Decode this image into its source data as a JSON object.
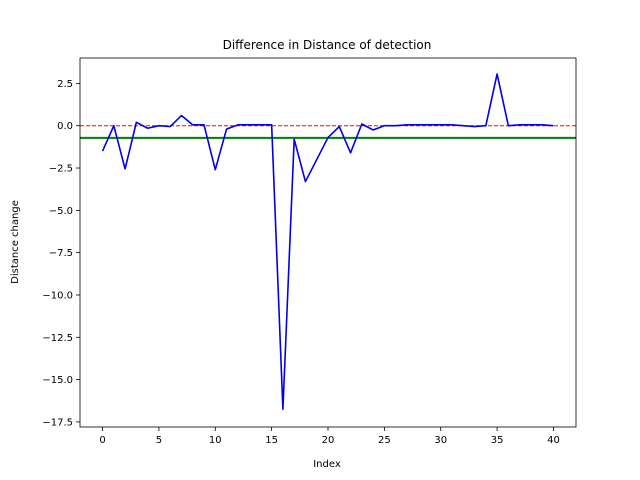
{
  "chart_data": {
    "type": "line",
    "title": "Difference in Distance of detection",
    "xlabel": "Index",
    "ylabel": "Distance change",
    "xlim": [
      -2,
      42
    ],
    "ylim": [
      -17.8,
      4.0
    ],
    "xticks": [
      0,
      5,
      10,
      15,
      20,
      25,
      30,
      35,
      40
    ],
    "yticks": [
      2.5,
      0.0,
      -2.5,
      -5.0,
      -7.5,
      -10.0,
      -12.5,
      -15.0,
      -17.5
    ],
    "xtick_labels": [
      "0",
      "5",
      "10",
      "15",
      "20",
      "25",
      "30",
      "35",
      "40"
    ],
    "ytick_labels": [
      "2.5",
      "0.0",
      "−2.5",
      "−5.0",
      "−7.5",
      "−10.0",
      "−12.5",
      "−15.0",
      "−17.5"
    ],
    "grid": false,
    "series": [
      {
        "color": "#0000ee",
        "x": [
          0,
          1,
          2,
          3,
          4,
          5,
          6,
          7,
          8,
          9,
          10,
          11,
          12,
          13,
          14,
          15,
          16,
          17,
          18,
          19,
          20,
          21,
          22,
          23,
          24,
          25,
          26,
          27,
          28,
          29,
          30,
          31,
          32,
          33,
          34,
          35,
          36,
          37,
          38,
          39,
          40
        ],
        "values": [
          -1.5,
          0.0,
          -2.55,
          0.2,
          -0.15,
          0.0,
          -0.05,
          0.6,
          0.05,
          0.05,
          -2.6,
          -0.2,
          0.05,
          0.05,
          0.05,
          0.05,
          -16.75,
          -0.8,
          -3.3,
          -2.0,
          -0.7,
          -0.05,
          -1.6,
          0.1,
          -0.25,
          0.0,
          0.0,
          0.05,
          0.05,
          0.05,
          0.05,
          0.05,
          0.0,
          -0.05,
          0.0,
          3.05,
          0.0,
          0.05,
          0.05,
          0.05,
          0.0
        ]
      }
    ],
    "reference_lines": [
      {
        "y": 0.0,
        "color": "#ff0000",
        "style": "dashed"
      },
      {
        "y": -0.72,
        "color": "#008000",
        "style": "solid"
      }
    ]
  }
}
